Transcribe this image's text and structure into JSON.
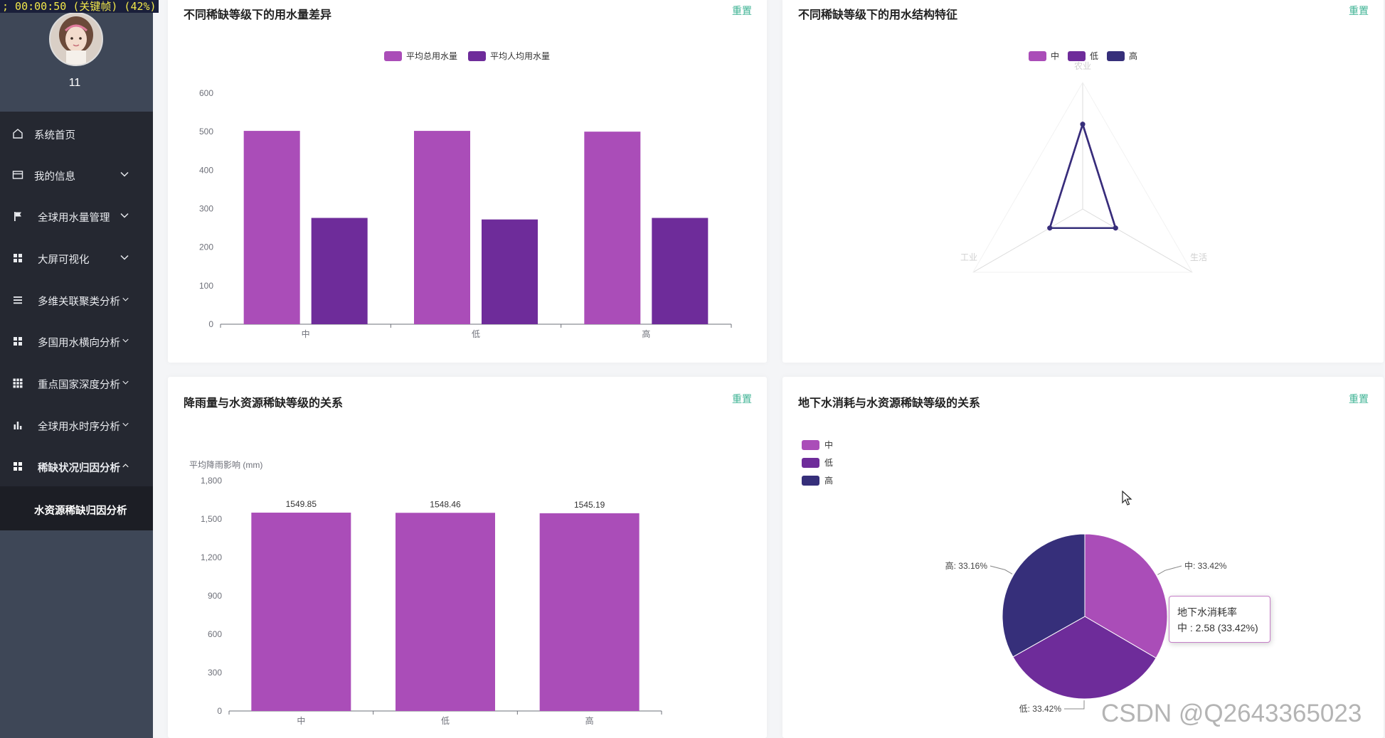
{
  "recorder": {
    "text": "; 00:00:50 (关键帧) (42%)"
  },
  "user": {
    "name": "11"
  },
  "menu": {
    "items": [
      {
        "label": "系统首页",
        "icon": "home-icon"
      },
      {
        "label": "我的信息",
        "icon": "card-icon",
        "expandable": true
      },
      {
        "label": "全球用水量管理",
        "icon": "flag-icon",
        "expandable": true
      },
      {
        "label": "大屏可视化",
        "icon": "grid-icon",
        "expandable": true
      },
      {
        "label": "多维关联聚类分析",
        "icon": "list-icon",
        "expandable": true
      },
      {
        "label": "多国用水横向分析",
        "icon": "grid-icon",
        "expandable": true
      },
      {
        "label": "重点国家深度分析",
        "icon": "apps-icon",
        "expandable": true
      },
      {
        "label": "全球用水时序分析",
        "icon": "bar-chart-icon",
        "expandable": true
      },
      {
        "label": "稀缺状况归因分析",
        "icon": "grid-icon",
        "expandable": true,
        "expanded": true
      }
    ],
    "submenu": {
      "label": "水资源稀缺归因分析"
    }
  },
  "cards": {
    "c1": {
      "title": "不同稀缺等级下的用水量差异",
      "reset": "重置"
    },
    "c2": {
      "title": "不同稀缺等级下的用水结构特征",
      "reset": "重置"
    },
    "c3": {
      "title": "降雨量与水资源稀缺等级的关系",
      "reset": "重置"
    },
    "c4": {
      "title": "地下水消耗与水资源稀缺等级的关系",
      "reset": "重置"
    }
  },
  "colors": {
    "c1": "#aa4db8",
    "c2": "#6e2c9a",
    "c3": "#362f7a",
    "grid": "#e6e6e6",
    "axis": "#6e7079"
  },
  "chart_data": [
    {
      "type": "bar",
      "title": "不同稀缺等级下的用水量差异",
      "categories": [
        "中",
        "低",
        "高"
      ],
      "series": [
        {
          "name": "平均总用水量",
          "values": [
            502,
            502,
            500
          ]
        },
        {
          "name": "平均人均用水量",
          "values": [
            276,
            272,
            276
          ]
        }
      ],
      "yticks": [
        "0",
        "100",
        "200",
        "300",
        "400",
        "500",
        "600"
      ],
      "ylim": [
        0,
        600
      ],
      "legend": "top-center"
    },
    {
      "type": "radar",
      "title": "不同稀缺等级下的用水结构特征",
      "indicators": [
        "农业",
        "工业",
        "生活"
      ],
      "series": [
        {
          "name": "中",
          "values": [
            0.67,
            0.3,
            0.3
          ]
        },
        {
          "name": "低",
          "values": [
            0.67,
            0.3,
            0.3
          ]
        },
        {
          "name": "高",
          "values": [
            0.67,
            0.3,
            0.3
          ]
        }
      ],
      "legend": "top-center"
    },
    {
      "type": "bar",
      "title": "降雨量与水资源稀缺等级的关系",
      "ylabel": "平均降雨影响 (mm)",
      "categories": [
        "中",
        "低",
        "高"
      ],
      "values": [
        1549.85,
        1548.46,
        1545.19
      ],
      "data_labels": [
        "1549.85",
        "1548.46",
        "1545.19"
      ],
      "yticks": [
        "0",
        "300",
        "600",
        "900",
        "1,200",
        "1,500",
        "1,800"
      ],
      "ylim": [
        0,
        1800
      ]
    },
    {
      "type": "pie",
      "title": "地下水消耗与水资源稀缺等级的关系",
      "slices": [
        {
          "name": "中",
          "percent": 33.42,
          "label": "中: 33.42%"
        },
        {
          "name": "低",
          "percent": 33.42,
          "label": "低: 33.42%"
        },
        {
          "name": "高",
          "percent": 33.16,
          "label": "高: 33.16%"
        }
      ],
      "legend": "top-left",
      "tooltip": {
        "title": "地下水消耗率",
        "line": "中 : 2.58 (33.42%)"
      }
    }
  ],
  "watermark": "CSDN @Q2643365023"
}
